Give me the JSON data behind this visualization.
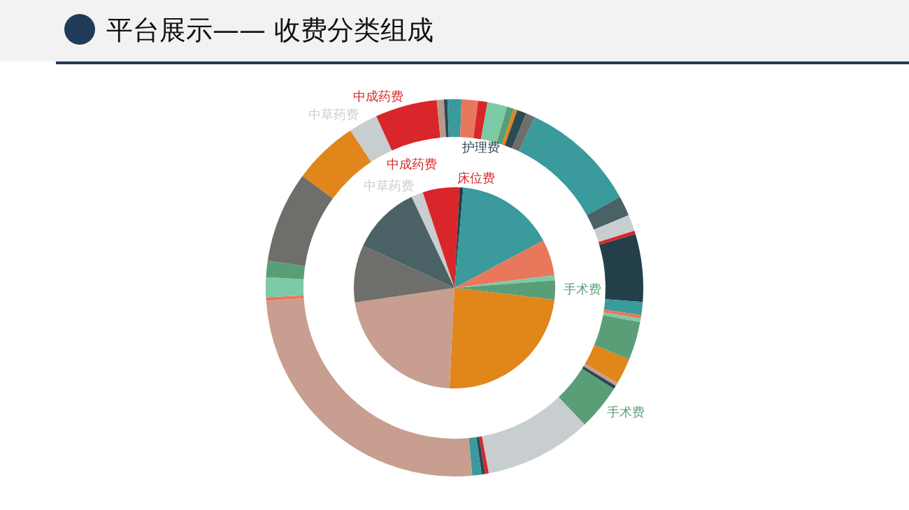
{
  "chart_data": [
    {
      "type": "donut",
      "title": "平台展示—— 收费分类组成",
      "legend": false,
      "categories": [
        null,
        null,
        null,
        null,
        null,
        null,
        null,
        null,
        null,
        null,
        null,
        null,
        null,
        null,
        null,
        null,
        null,
        null,
        null,
        null,
        "手术费",
        null,
        null,
        null,
        null,
        null,
        null,
        null,
        null,
        null,
        null,
        "中草药费",
        "中成药费",
        null,
        null,
        null
      ],
      "values": [
        0.6,
        1.4,
        0.8,
        1.7,
        0.6,
        0.3,
        0.8,
        0.8,
        10,
        1.7,
        1.4,
        0.3,
        5.8,
        1.1,
        0.3,
        0.3,
        3.3,
        2.2,
        0.3,
        0.3,
        3.9,
        9.2,
        0.3,
        0.3,
        0.8,
        25.4,
        0.3,
        1.7,
        1.4,
        7.8,
        5.6,
        2.5,
        5.3,
        0.6,
        0.3,
        0.6
      ],
      "colors": [
        "#3a9a9c",
        "#e8785c",
        "#d9262a",
        "#7ccaa6",
        "#5a9e78",
        "#e0861a",
        "#2c4a52",
        "#6e6e6a",
        "#3a9a9c",
        "#4a6266",
        "#c8cdd0",
        "#d9262a",
        "#233f4a",
        "#3a9a9c",
        "#e8785c",
        "#7ccaa6",
        "#5a9e78",
        "#e0861a",
        "#c79e8f",
        "#2c4a52",
        "#5a9e78",
        "#c8cdd0",
        "#d9262a",
        "#2c4a52",
        "#3a9a9c",
        "#c79e8f",
        "#e8785c",
        "#7ccaa6",
        "#5a9e78",
        "#6e6e6a",
        "#e0861a",
        "#c8cdd0",
        "#d9262a",
        "#b89a88",
        "#2c4a52",
        "#3a9a9c"
      ]
    },
    {
      "type": "pie",
      "legend": false,
      "categories": [
        "床位费",
        "护理费",
        null,
        null,
        null,
        "手术费",
        null,
        null,
        null,
        null,
        "中草药费",
        "中成药费"
      ],
      "values": [
        0.8,
        0.6,
        15.8,
        5.8,
        0.8,
        3.1,
        23.9,
        21.9,
        9.2,
        11.1,
        1.9,
        5.1
      ],
      "colors": [
        "#d9262a",
        "#233f4a",
        "#3a9a9c",
        "#e8785c",
        "#7ccaa6",
        "#5a9e78",
        "#e0861a",
        "#c79e8f",
        "#6e6e6a",
        "#4a6266",
        "#c8cdd0",
        "#d9262a"
      ]
    }
  ]
}
